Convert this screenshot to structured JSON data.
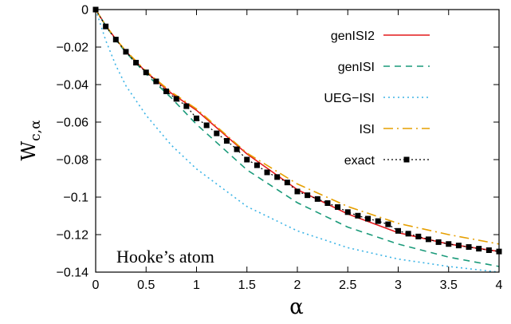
{
  "chart_data": {
    "type": "line",
    "title": "",
    "xlabel": "α",
    "ylabel": {
      "main": "W",
      "sub": "c,α"
    },
    "xlim": [
      0,
      4
    ],
    "ylim": [
      -0.14,
      0
    ],
    "xticks": [
      0,
      0.5,
      1,
      1.5,
      2,
      2.5,
      3,
      3.5,
      4
    ],
    "xtick_labels": [
      "0",
      "0.5",
      "1",
      "1.5",
      "2",
      "2.5",
      "3",
      "3.5",
      "4"
    ],
    "yticks": [
      0,
      -0.02,
      -0.04,
      -0.06,
      -0.08,
      -0.1,
      -0.12,
      -0.14
    ],
    "ytick_labels": [
      "0",
      "−0.02",
      "−0.04",
      "−0.06",
      "−0.08",
      "−0.1",
      "−0.12",
      "−0.14"
    ],
    "grid": false,
    "legend_position": "top-right",
    "annotation": "Hooke’s atom",
    "series": [
      {
        "name": "genISI2",
        "color": "#e41a1c",
        "style": "solid",
        "x": [
          0,
          0.1,
          0.2,
          0.3,
          0.5,
          0.75,
          1,
          1.5,
          2,
          2.5,
          3,
          3.5,
          4
        ],
        "y": [
          0,
          -0.0085,
          -0.0158,
          -0.0223,
          -0.0333,
          -0.0446,
          -0.0537,
          -0.077,
          -0.096,
          -0.109,
          -0.119,
          -0.125,
          -0.129
        ]
      },
      {
        "name": "genISI",
        "color": "#1a9a7a",
        "style": "dashed",
        "x": [
          0,
          0.1,
          0.2,
          0.3,
          0.5,
          0.75,
          1,
          1.5,
          2,
          2.5,
          3,
          3.5,
          4
        ],
        "y": [
          0,
          -0.0087,
          -0.0163,
          -0.0228,
          -0.0344,
          -0.0471,
          -0.0612,
          -0.0855,
          -0.103,
          -0.116,
          -0.125,
          -0.132,
          -0.137
        ]
      },
      {
        "name": "UEG−ISI",
        "color": "#3cb4e6",
        "style": "dotted",
        "x": [
          0,
          0.1,
          0.2,
          0.3,
          0.5,
          0.75,
          1,
          1.5,
          2,
          2.5,
          3,
          3.5,
          4
        ],
        "y": [
          0,
          -0.0165,
          -0.0298,
          -0.0406,
          -0.0564,
          -0.0723,
          -0.085,
          -0.105,
          -0.118,
          -0.127,
          -0.133,
          -0.137,
          -0.14
        ]
      },
      {
        "name": "ISI",
        "color": "#e69f00",
        "style": "dashdot",
        "x": [
          0,
          0.1,
          0.2,
          0.3,
          0.5,
          0.75,
          1,
          1.5,
          2,
          2.5,
          3,
          3.5,
          4
        ],
        "y": [
          0,
          -0.0085,
          -0.0157,
          -0.022,
          -0.0329,
          -0.044,
          -0.053,
          -0.0765,
          -0.093,
          -0.105,
          -0.114,
          -0.12,
          -0.125
        ]
      },
      {
        "name": "exact",
        "color": "#000000",
        "style": "dotted-markers",
        "x": [
          0,
          0.1,
          0.2,
          0.3,
          0.4,
          0.5,
          0.6,
          0.7,
          0.8,
          0.9,
          1.0,
          1.1,
          1.2,
          1.3,
          1.4,
          1.5,
          1.6,
          1.7,
          1.8,
          1.9,
          2.0,
          2.1,
          2.2,
          2.3,
          2.4,
          2.5,
          2.6,
          2.7,
          2.8,
          2.9,
          3.0,
          3.1,
          3.2,
          3.3,
          3.4,
          3.5,
          3.6,
          3.7,
          3.8,
          3.9,
          4.0
        ],
        "y": [
          0,
          -0.009,
          -0.016,
          -0.0225,
          -0.0283,
          -0.0335,
          -0.0383,
          -0.0436,
          -0.0476,
          -0.0515,
          -0.058,
          -0.0617,
          -0.066,
          -0.07,
          -0.0745,
          -0.08,
          -0.083,
          -0.0868,
          -0.0893,
          -0.0922,
          -0.097,
          -0.099,
          -0.101,
          -0.1032,
          -0.1053,
          -0.108,
          -0.1099,
          -0.1115,
          -0.1128,
          -0.1145,
          -0.118,
          -0.1195,
          -0.121,
          -0.1225,
          -0.124,
          -0.125,
          -0.1258,
          -0.1266,
          -0.1275,
          -0.1283,
          -0.129
        ]
      }
    ]
  }
}
